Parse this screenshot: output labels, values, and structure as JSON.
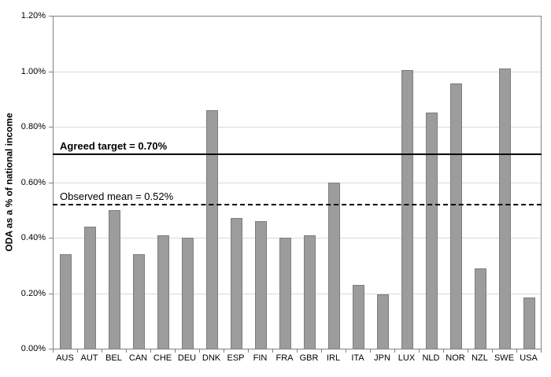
{
  "page": {
    "background": "#ffffff"
  },
  "chart_data": {
    "type": "bar",
    "title": "",
    "xlabel": "",
    "ylabel": "ODA as a % of national income",
    "categories": [
      "AUS",
      "AUT",
      "BEL",
      "CAN",
      "CHE",
      "DEU",
      "DNK",
      "ESP",
      "FIN",
      "FRA",
      "GBR",
      "IRL",
      "ITA",
      "JPN",
      "LUX",
      "NLD",
      "NOR",
      "NZL",
      "SWE",
      "USA"
    ],
    "values": [
      0.34,
      0.44,
      0.5,
      0.34,
      0.41,
      0.4,
      0.86,
      0.47,
      0.46,
      0.4,
      0.41,
      0.6,
      0.23,
      0.195,
      1.005,
      0.85,
      0.955,
      0.29,
      1.01,
      0.185
    ],
    "value_unit": "% of national income",
    "ylim": [
      0,
      1.2
    ],
    "ytick_values": [
      0,
      0.2,
      0.4,
      0.6,
      0.8,
      1.0,
      1.2
    ],
    "ytick_labels": [
      "0.00%",
      "0.20%",
      "0.40%",
      "0.60%",
      "0.80%",
      "1.00%",
      "1.20%"
    ],
    "grid": "horizontal",
    "legend_position": "none",
    "annotations": [
      {
        "id": "agreed-target",
        "label": "Agreed target = 0.70%",
        "value": 0.7,
        "line_style": "solid",
        "bold": true
      },
      {
        "id": "observed-mean",
        "label": "Observed mean = 0.52%",
        "value": 0.52,
        "line_style": "dashed",
        "bold": false
      }
    ],
    "colors": {
      "bar_fill": "#9c9c9c",
      "bar_border": "#7d7d7d",
      "gridline": "#d9d9d9",
      "axis": "#808080",
      "reference_line": "#000000",
      "text": "#000000"
    }
  }
}
